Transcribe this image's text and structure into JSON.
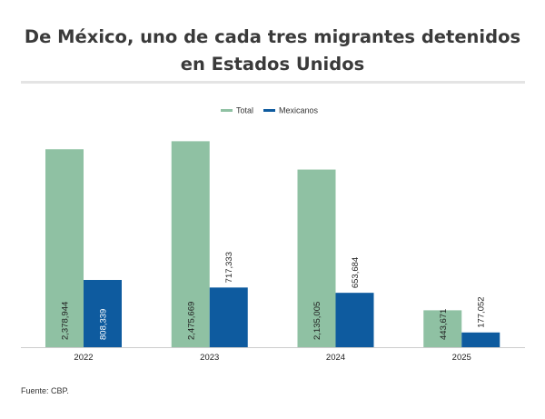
{
  "title": "De México, uno de cada tres migrantes detenidos en Estados Unidos",
  "source": "Fuente: CBP.",
  "colors": {
    "total": "#8fc1a3",
    "mexicanos": "#0e5b9f",
    "axis": "#cccccc",
    "text": "#222222"
  },
  "chart_data": {
    "type": "bar",
    "categories": [
      "2022",
      "2023",
      "2024",
      "2025"
    ],
    "series": [
      {
        "name": "Total",
        "values": [
          2378944,
          2475669,
          2135005,
          443671
        ],
        "labels": [
          "2,378,944",
          "2,475,669",
          "2,135,005",
          "443,671"
        ]
      },
      {
        "name": "Mexicanos",
        "values": [
          808339,
          717333,
          653684,
          177052
        ],
        "labels": [
          "808,339",
          "717,333",
          "653,684",
          "177,052"
        ]
      }
    ],
    "ylim": [
      0,
      2600000
    ],
    "legend": "top-center",
    "grid": false,
    "xlabel": "",
    "ylabel": ""
  }
}
